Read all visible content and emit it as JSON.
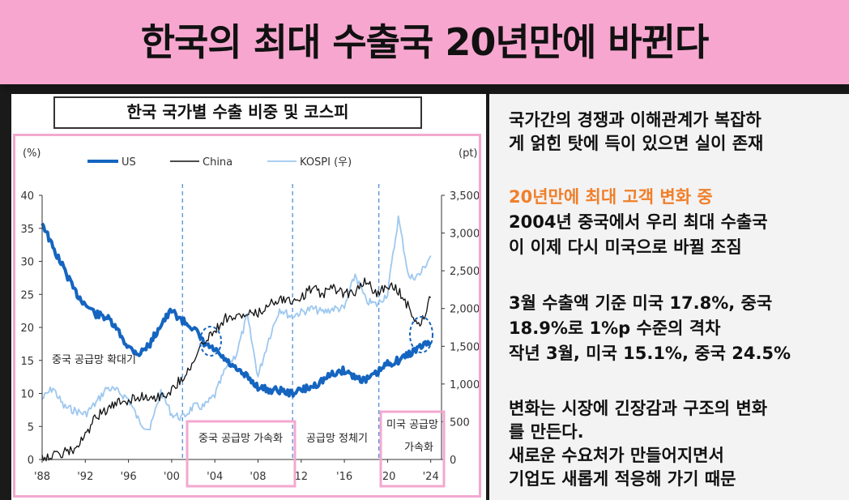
{
  "slide": {
    "title": "한국의 최대 수출국 20년만에 바뀐다"
  },
  "chart_data": {
    "type": "line",
    "title": "한국 국가별 수출 비중 및 코스피",
    "y_left_unit": "(%)",
    "y_right_unit": "(pt)",
    "ylim_left": [
      0,
      40
    ],
    "ylim_right": [
      0,
      3500
    ],
    "yticks_left": [
      "0",
      "5",
      "10",
      "15",
      "20",
      "25",
      "30",
      "35",
      "40"
    ],
    "yticks_right": [
      "0",
      "500",
      "1,000",
      "1,500",
      "2,000",
      "2,500",
      "3,000",
      "3,500"
    ],
    "xlim": [
      1988,
      2025
    ],
    "xticks": [
      "'88",
      "'92",
      "'96",
      "'00",
      "'04",
      "'08",
      "12",
      "'16",
      "'20",
      "'24"
    ],
    "legend": [
      "US",
      "China",
      "KOSPI (우)"
    ],
    "colors": {
      "US": "#1565c0",
      "China": "#111111",
      "KOSPI": "#9ec8ef"
    },
    "series": [
      {
        "name": "US",
        "axis": "left",
        "x": [
          1988,
          1989,
          1990,
          1991,
          1992,
          1993,
          1994,
          1995,
          1996,
          1997,
          1998,
          1999,
          2000,
          2001,
          2002,
          2003,
          2004,
          2005,
          2006,
          2007,
          2008,
          2009,
          2010,
          2011,
          2012,
          2013,
          2014,
          2015,
          2016,
          2017,
          2018,
          2019,
          2020,
          2021,
          2022,
          2023,
          2024
        ],
        "values": [
          36,
          32,
          29,
          25.5,
          23.5,
          22,
          21.5,
          19.5,
          17,
          16,
          17.5,
          20.5,
          22.5,
          21,
          20,
          17.5,
          16.5,
          15,
          13.5,
          12.5,
          11,
          10.5,
          10.5,
          10,
          10.5,
          11,
          12,
          13,
          13.5,
          12.5,
          12,
          13,
          14.5,
          15,
          16,
          17,
          17.8
        ]
      },
      {
        "name": "China",
        "axis": "left",
        "x": [
          1988,
          1989,
          1990,
          1991,
          1992,
          1993,
          1994,
          1995,
          1996,
          1997,
          1998,
          1999,
          2000,
          2001,
          2002,
          2003,
          2004,
          2005,
          2006,
          2007,
          2008,
          2009,
          2010,
          2011,
          2012,
          2013,
          2014,
          2015,
          2016,
          2017,
          2018,
          2019,
          2020,
          2021,
          2022,
          2023,
          2024
        ],
        "values": [
          0.5,
          0.5,
          1,
          1.5,
          3.5,
          6.5,
          7.5,
          8.5,
          9,
          9.5,
          9.5,
          9.5,
          10.5,
          12.5,
          14.5,
          18,
          19.5,
          21.5,
          21.5,
          22,
          22,
          23.5,
          24.5,
          24,
          24.5,
          26,
          25,
          26,
          25,
          25.5,
          27,
          25,
          26.5,
          25.5,
          23,
          20,
          24.5
        ]
      },
      {
        "name": "KOSPI (우)",
        "axis": "right",
        "x": [
          1988,
          1989,
          1990,
          1991,
          1992,
          1993,
          1994,
          1995,
          1996,
          1997,
          1998,
          1999,
          2000,
          2001,
          2002,
          2003,
          2004,
          2005,
          2006,
          2007,
          2008,
          2009,
          2010,
          2011,
          2012,
          2013,
          2014,
          2015,
          2016,
          2017,
          2018,
          2019,
          2020,
          2021,
          2022,
          2023,
          2024
        ],
        "values": [
          800,
          950,
          700,
          650,
          600,
          750,
          950,
          900,
          800,
          500,
          400,
          900,
          600,
          550,
          700,
          700,
          850,
          1200,
          1400,
          1900,
          1100,
          1600,
          2000,
          1900,
          1950,
          2000,
          1950,
          2000,
          2000,
          2450,
          2100,
          2050,
          2200,
          3200,
          2400,
          2450,
          2700
        ]
      }
    ],
    "annotations": [
      {
        "text": "중국 공급망 확대기",
        "boxed": false
      },
      {
        "text": "중국 공급망 가속화",
        "boxed": true
      },
      {
        "text": "공급망 정체기",
        "boxed": false
      },
      {
        "text": "미국 공급망 가속화",
        "boxed": true
      }
    ],
    "dashed_dividers_x": [
      2001,
      2011.2,
      2019.2
    ]
  },
  "right_panel": {
    "para1": [
      "국가간의 경쟁과 이해관계가 복잡하",
      "게 얽힌 탓에 득이 있으면 실이 존재"
    ],
    "para2_highlight": "20년만에 최대 고객 변화 중",
    "para2": [
      "2004년 중국에서 우리 최대 수출국",
      "이 이제 다시 미국으로 바뀔 조짐"
    ],
    "para3": [
      "3월 수출액 기준 미국 17.8%, 중국",
      "18.9%로 1%p 수준의 격차",
      "작년 3월, 미국 15.1%, 중국 24.5%"
    ],
    "para4": [
      "변화는 시장에 긴장감과 구조의 변화",
      "를 만든다.",
      "새로운 수요처가 만들어지면서",
      "기업도 새롭게 적응해 가기 때문"
    ]
  }
}
